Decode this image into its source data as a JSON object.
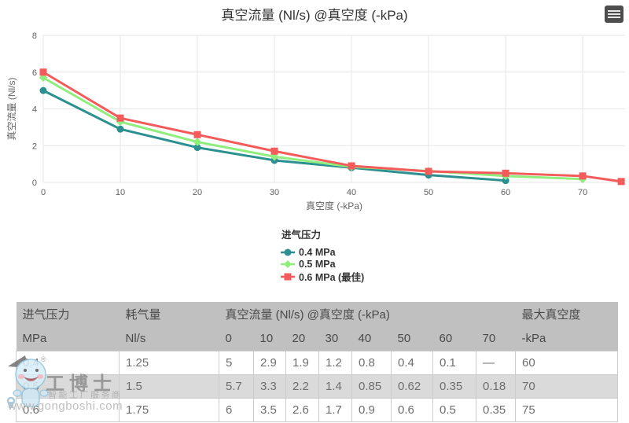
{
  "chart_data": {
    "type": "line",
    "title": "真空流量 (Nl/s) @真空度 (-kPa)",
    "xlabel": "真空度 (-kPa)",
    "ylabel": "真空流量 (Nl/s)",
    "legend_title": "进气压力",
    "legend_position": "bottom-center",
    "grid": true,
    "xlim": [
      0,
      75.5
    ],
    "ylim": [
      0,
      8
    ],
    "x_ticks": [
      0,
      10,
      20,
      30,
      40,
      50,
      60,
      70
    ],
    "y_ticks": [
      0,
      2,
      4,
      6,
      8
    ],
    "export_icon": "hamburger-menu-icon",
    "series": [
      {
        "name": "0.4 MPa",
        "color": "#2b908f",
        "marker": "circle",
        "x": [
          0,
          10,
          20,
          30,
          40,
          50,
          60
        ],
        "y": [
          5,
          2.9,
          1.9,
          1.2,
          0.8,
          0.4,
          0.1
        ]
      },
      {
        "name": "0.5 MPa",
        "color": "#90ee7e",
        "marker": "diamond",
        "x": [
          0,
          10,
          20,
          30,
          40,
          50,
          60,
          70
        ],
        "y": [
          5.7,
          3.3,
          2.2,
          1.4,
          0.85,
          0.62,
          0.35,
          0.18
        ]
      },
      {
        "name": "0.6 MPa (最佳)",
        "color": "#f45b5b",
        "marker": "square",
        "x": [
          0,
          10,
          20,
          30,
          40,
          50,
          60,
          70,
          75
        ],
        "y": [
          6,
          3.5,
          2.6,
          1.7,
          0.9,
          0.6,
          0.5,
          0.35,
          0.05
        ]
      }
    ]
  },
  "table": {
    "group_headers": [
      {
        "label": "进气压力",
        "span": 1
      },
      {
        "label": "耗气量",
        "span": 1
      },
      {
        "label": "真空流量 (Nl/s) @真空度 (-kPa)",
        "span": 8
      },
      {
        "label": "最大真空度",
        "span": 1
      }
    ],
    "unit_headers": [
      "MPa",
      "Nl/s",
      "0",
      "10",
      "20",
      "30",
      "40",
      "50",
      "60",
      "70",
      "-kPa"
    ],
    "rows": [
      [
        "0.4",
        "1.25",
        "5",
        "2.9",
        "1.9",
        "1.2",
        "0.8",
        "0.4",
        "0.1",
        "—",
        "60"
      ],
      [
        "0.5",
        "1.5",
        "5.7",
        "3.3",
        "2.2",
        "1.4",
        "0.85",
        "0.62",
        "0.35",
        "0.18",
        "70"
      ],
      [
        "0.6",
        "1.75",
        "6",
        "3.5",
        "2.6",
        "1.7",
        "0.9",
        "0.6",
        "0.5",
        "0.35",
        "75"
      ]
    ]
  },
  "watermark": {
    "brand": "工博士",
    "registered_mark": "®",
    "tagline": "智能工厂服务商",
    "url": "www.gongboshi.com"
  },
  "colors": {
    "series_04mpa": "#2b908f",
    "series_05mpa": "#90ee7e",
    "series_06mpa": "#f45b5b",
    "table_header_bg": "#c0c0c0",
    "table_stripe_bg": "#dadada",
    "gridline": "#e6e6e6"
  }
}
